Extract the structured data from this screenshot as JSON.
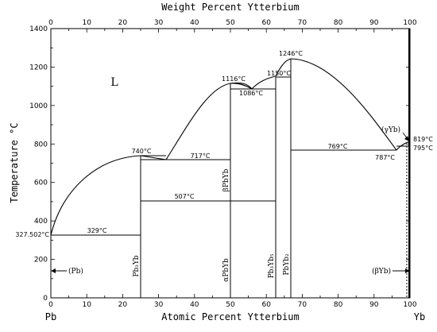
{
  "top_axis_title": "Weight Percent Ytterbium",
  "bottom_axis_title": "Atomic Percent Ytterbium",
  "y_axis_title": "Temperature °C",
  "left_element": "Pb",
  "right_element": "Yb",
  "liquid_label": "L",
  "top_ticks": [
    "0",
    "10",
    "20",
    "30",
    "40",
    "50",
    "60",
    "70",
    "80",
    "90",
    "100"
  ],
  "bottom_ticks": [
    "0",
    "10",
    "20",
    "30",
    "40",
    "50",
    "60",
    "70",
    "80",
    "90",
    "100"
  ],
  "y_ticks": [
    "0",
    "200",
    "400",
    "600",
    "800",
    "1000",
    "1200",
    "1400"
  ],
  "temperature_labels": {
    "t327": "327.502°C",
    "t329": "329°C",
    "t740": "740°C",
    "t717": "717°C",
    "t507": "507°C",
    "t1116": "1116°C",
    "t1086": "1086°C",
    "t1150": "1150°C",
    "t1246": "1246°C",
    "t769": "769°C",
    "t787": "787°C",
    "t819": "819°C",
    "t795": "795°C"
  },
  "phases": {
    "pb": "(Pb)",
    "yb_beta": "(βYb)",
    "yb_gamma": "(γYb)",
    "pb3yb": "Pb₃Yb",
    "apbyb": "αPbYb",
    "bpbyb": "βPbYb",
    "pb3yb5": "Pb₃Yb₅",
    "pbyb2": "PbYb₂"
  }
}
